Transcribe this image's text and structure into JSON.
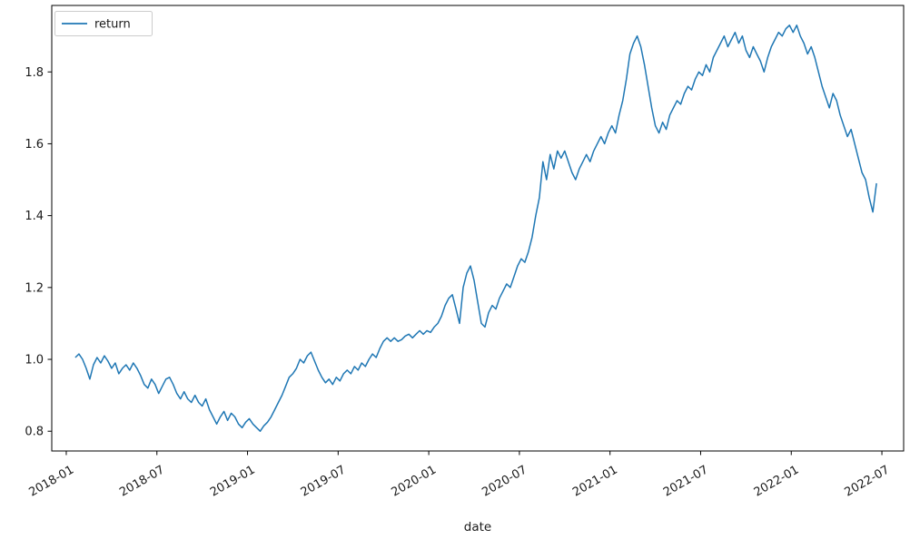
{
  "figure": {
    "background": "#ffffff"
  },
  "chart_data": {
    "type": "line",
    "title": "",
    "xlabel": "date",
    "ylabel": "",
    "legend": {
      "position": "upper left",
      "entries": [
        "return"
      ]
    },
    "line_color": "#1f77b4",
    "axis_color": "#000000",
    "text_color": "#1a1a1a",
    "legend_frame_color": "#cccccc",
    "grid": false,
    "xlim": [
      2017.92,
      2022.62
    ],
    "ylim": [
      0.745,
      1.985
    ],
    "x_unit": "decimal_year",
    "xticks": {
      "positions": [
        2018.0,
        2018.5,
        2019.0,
        2019.5,
        2020.0,
        2020.5,
        2021.0,
        2021.5,
        2022.0,
        2022.5
      ],
      "labels": [
        "2018-01",
        "2018-07",
        "2019-01",
        "2019-07",
        "2020-01",
        "2020-07",
        "2021-01",
        "2021-07",
        "2022-01",
        "2022-07"
      ]
    },
    "yticks": {
      "positions": [
        0.8,
        1.0,
        1.2,
        1.4,
        1.6,
        1.8
      ],
      "labels": [
        "0.8",
        "1.0",
        "1.2",
        "1.4",
        "1.6",
        "1.8"
      ]
    },
    "series": [
      {
        "name": "return",
        "x": [
          2018.05,
          2018.07,
          2018.09,
          2018.11,
          2018.13,
          2018.15,
          2018.17,
          2018.19,
          2018.21,
          2018.23,
          2018.25,
          2018.27,
          2018.29,
          2018.31,
          2018.33,
          2018.35,
          2018.37,
          2018.39,
          2018.41,
          2018.43,
          2018.45,
          2018.47,
          2018.49,
          2018.51,
          2018.53,
          2018.55,
          2018.57,
          2018.59,
          2018.61,
          2018.63,
          2018.65,
          2018.67,
          2018.69,
          2018.71,
          2018.73,
          2018.75,
          2018.77,
          2018.79,
          2018.81,
          2018.83,
          2018.85,
          2018.87,
          2018.89,
          2018.91,
          2018.93,
          2018.95,
          2018.97,
          2018.99,
          2019.01,
          2019.03,
          2019.05,
          2019.07,
          2019.09,
          2019.11,
          2019.13,
          2019.15,
          2019.17,
          2019.19,
          2019.21,
          2019.23,
          2019.25,
          2019.27,
          2019.29,
          2019.31,
          2019.33,
          2019.35,
          2019.37,
          2019.39,
          2019.41,
          2019.43,
          2019.45,
          2019.47,
          2019.49,
          2019.51,
          2019.53,
          2019.55,
          2019.57,
          2019.59,
          2019.61,
          2019.63,
          2019.65,
          2019.67,
          2019.69,
          2019.71,
          2019.73,
          2019.75,
          2019.77,
          2019.79,
          2019.81,
          2019.83,
          2019.85,
          2019.87,
          2019.89,
          2019.91,
          2019.93,
          2019.95,
          2019.97,
          2019.99,
          2020.01,
          2020.03,
          2020.05,
          2020.07,
          2020.09,
          2020.11,
          2020.13,
          2020.15,
          2020.17,
          2020.19,
          2020.21,
          2020.23,
          2020.25,
          2020.27,
          2020.29,
          2020.31,
          2020.33,
          2020.35,
          2020.37,
          2020.39,
          2020.41,
          2020.43,
          2020.45,
          2020.47,
          2020.49,
          2020.51,
          2020.53,
          2020.55,
          2020.57,
          2020.59,
          2020.61,
          2020.63,
          2020.65,
          2020.67,
          2020.69,
          2020.71,
          2020.73,
          2020.75,
          2020.77,
          2020.79,
          2020.81,
          2020.83,
          2020.85,
          2020.87,
          2020.89,
          2020.91,
          2020.93,
          2020.95,
          2020.97,
          2020.99,
          2021.01,
          2021.03,
          2021.05,
          2021.07,
          2021.09,
          2021.11,
          2021.13,
          2021.15,
          2021.17,
          2021.19,
          2021.21,
          2021.23,
          2021.25,
          2021.27,
          2021.29,
          2021.31,
          2021.33,
          2021.35,
          2021.37,
          2021.39,
          2021.41,
          2021.43,
          2021.45,
          2021.47,
          2021.49,
          2021.51,
          2021.53,
          2021.55,
          2021.57,
          2021.59,
          2021.61,
          2021.63,
          2021.65,
          2021.67,
          2021.69,
          2021.71,
          2021.73,
          2021.75,
          2021.77,
          2021.79,
          2021.81,
          2021.83,
          2021.85,
          2021.87,
          2021.89,
          2021.91,
          2021.93,
          2021.95,
          2021.97,
          2021.99,
          2022.01,
          2022.03,
          2022.05,
          2022.07,
          2022.09,
          2022.11,
          2022.13,
          2022.15,
          2022.17,
          2022.19,
          2022.21,
          2022.23,
          2022.25,
          2022.27,
          2022.29,
          2022.31,
          2022.33,
          2022.35,
          2022.37,
          2022.39,
          2022.41,
          2022.43,
          2022.45,
          2022.47
        ],
        "y": [
          1.005,
          1.015,
          1.0,
          0.975,
          0.945,
          0.985,
          1.005,
          0.99,
          1.01,
          0.995,
          0.975,
          0.99,
          0.96,
          0.975,
          0.985,
          0.97,
          0.99,
          0.975,
          0.955,
          0.93,
          0.92,
          0.945,
          0.93,
          0.905,
          0.925,
          0.945,
          0.95,
          0.93,
          0.905,
          0.89,
          0.91,
          0.89,
          0.88,
          0.9,
          0.88,
          0.87,
          0.89,
          0.86,
          0.84,
          0.82,
          0.84,
          0.855,
          0.83,
          0.85,
          0.84,
          0.82,
          0.81,
          0.825,
          0.835,
          0.82,
          0.81,
          0.8,
          0.815,
          0.825,
          0.84,
          0.86,
          0.88,
          0.9,
          0.925,
          0.95,
          0.96,
          0.975,
          1.0,
          0.99,
          1.01,
          1.02,
          0.995,
          0.97,
          0.95,
          0.935,
          0.945,
          0.93,
          0.95,
          0.94,
          0.96,
          0.97,
          0.96,
          0.98,
          0.97,
          0.99,
          0.98,
          1.0,
          1.015,
          1.005,
          1.03,
          1.05,
          1.06,
          1.05,
          1.06,
          1.05,
          1.055,
          1.065,
          1.07,
          1.06,
          1.07,
          1.08,
          1.07,
          1.08,
          1.075,
          1.09,
          1.1,
          1.12,
          1.15,
          1.17,
          1.18,
          1.14,
          1.1,
          1.2,
          1.24,
          1.26,
          1.22,
          1.16,
          1.1,
          1.09,
          1.13,
          1.15,
          1.14,
          1.17,
          1.19,
          1.21,
          1.2,
          1.23,
          1.26,
          1.28,
          1.27,
          1.3,
          1.34,
          1.4,
          1.45,
          1.55,
          1.5,
          1.57,
          1.53,
          1.58,
          1.56,
          1.58,
          1.55,
          1.52,
          1.5,
          1.53,
          1.55,
          1.57,
          1.55,
          1.58,
          1.6,
          1.62,
          1.6,
          1.63,
          1.65,
          1.63,
          1.68,
          1.72,
          1.78,
          1.85,
          1.88,
          1.9,
          1.87,
          1.82,
          1.76,
          1.7,
          1.65,
          1.63,
          1.66,
          1.64,
          1.68,
          1.7,
          1.72,
          1.71,
          1.74,
          1.76,
          1.75,
          1.78,
          1.8,
          1.79,
          1.82,
          1.8,
          1.84,
          1.86,
          1.88,
          1.9,
          1.87,
          1.89,
          1.91,
          1.88,
          1.9,
          1.86,
          1.84,
          1.87,
          1.85,
          1.83,
          1.8,
          1.84,
          1.87,
          1.89,
          1.91,
          1.9,
          1.92,
          1.93,
          1.91,
          1.93,
          1.9,
          1.88,
          1.85,
          1.87,
          1.84,
          1.8,
          1.76,
          1.73,
          1.7,
          1.74,
          1.72,
          1.68,
          1.65,
          1.62,
          1.64,
          1.6,
          1.56,
          1.52,
          1.5,
          1.45,
          1.41,
          1.49
        ]
      }
    ]
  }
}
